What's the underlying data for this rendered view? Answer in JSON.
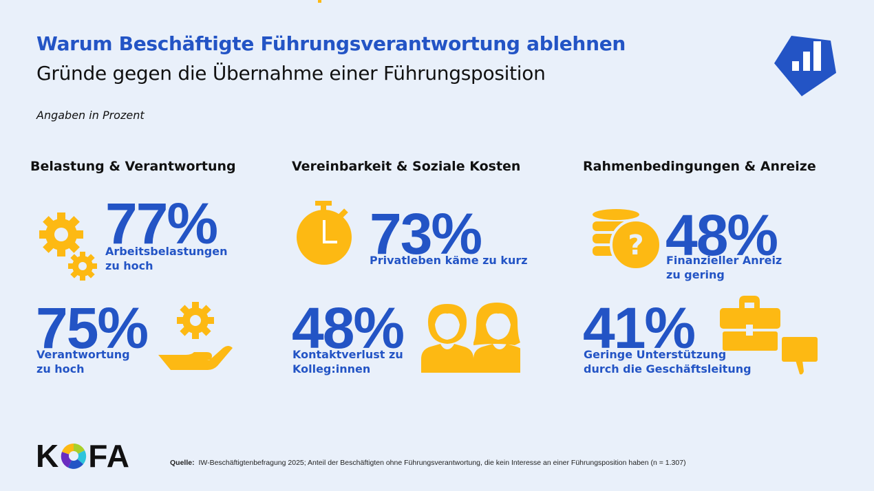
{
  "header": {
    "title": "Warum Beschäftigte Führungsverantwortung ablehnen",
    "subtitle": "Gründe gegen die Übernahme einer Führungsposition",
    "unit_note": "Angaben in Prozent"
  },
  "colors": {
    "blue": "#2354c5",
    "yellow": "#fdb913",
    "background": "#e9f0fa"
  },
  "columns": [
    {
      "heading": "Belastung & Verantwortung",
      "items": [
        {
          "value": "77%",
          "label_line1": "Arbeitsbelastungen",
          "label_line2": "zu hoch",
          "icon": "gears-icon"
        },
        {
          "value": "75%",
          "label_line1": "Verantwortung",
          "label_line2": "zu hoch",
          "icon": "hand-gear-icon"
        }
      ]
    },
    {
      "heading": "Vereinbarkeit & Soziale Kosten",
      "items": [
        {
          "value": "73%",
          "label_line1": "Privatleben käme zu kurz",
          "icon": "stopwatch-icon"
        },
        {
          "value": "48%",
          "label_line1": "Kontaktverlust zu",
          "label_line2": "Kolleg:innen",
          "icon": "people-icon"
        }
      ]
    },
    {
      "heading": "Rahmenbedingungen & Anreize",
      "items": [
        {
          "value": "48%",
          "label_line1": "Finanzieller Anreiz",
          "label_line2": "zu gering",
          "icon": "coins-question-icon"
        },
        {
          "value": "41%",
          "label_line1": "Geringe Unterstützung",
          "label_line2": "durch die Geschäftsleitung",
          "icon": "briefcase-thumbs-down-icon"
        }
      ]
    }
  ],
  "footer": {
    "logo": "KOFA",
    "source_label": "Quelle:",
    "source_text": "IW-Beschäftigtenbefragung 2025; Anteil der Beschäftigten ohne Führungsverantwortung, die kein Interesse an einer Führungsposition haben (n = 1.307)"
  }
}
